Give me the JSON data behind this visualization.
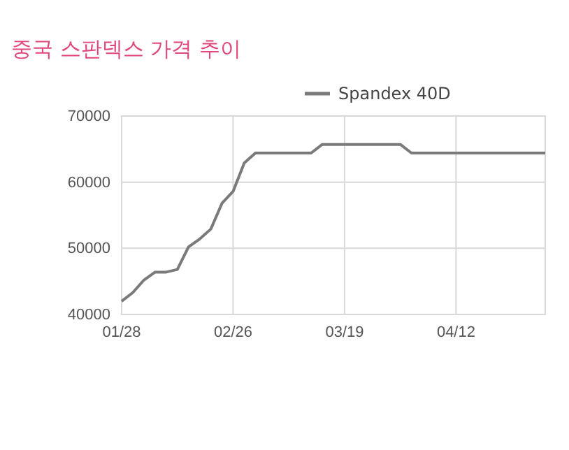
{
  "chart_data": {
    "type": "line",
    "title": "중국 스판덱스 가격 추이",
    "categories": [
      "01/28",
      null,
      null,
      null,
      null,
      null,
      null,
      null,
      null,
      null,
      "02/26",
      null,
      null,
      null,
      null,
      null,
      null,
      null,
      null,
      null,
      "03/19",
      null,
      null,
      null,
      null,
      null,
      null,
      null,
      null,
      null,
      "04/12",
      null,
      null,
      null,
      null,
      null,
      null,
      null,
      null
    ],
    "series": [
      {
        "name": "Spandex 40D",
        "color": "#7a7a7a",
        "values": [
          42000,
          43300,
          45200,
          46400,
          46400,
          46800,
          50200,
          51400,
          52900,
          56800,
          58600,
          62900,
          64400,
          64400,
          64400,
          64400,
          64400,
          64400,
          65700,
          65700,
          65700,
          65700,
          65700,
          65700,
          65700,
          65700,
          64400,
          64400,
          64400,
          64400,
          64400,
          64400,
          64400,
          64400,
          64400,
          64400,
          64400,
          64400,
          64400
        ]
      }
    ],
    "ylim": [
      40000,
      70000
    ],
    "yticks": [
      40000,
      50000,
      60000,
      70000
    ],
    "grid": true,
    "legend": "top right",
    "marker": "none",
    "line_style": "solid"
  }
}
